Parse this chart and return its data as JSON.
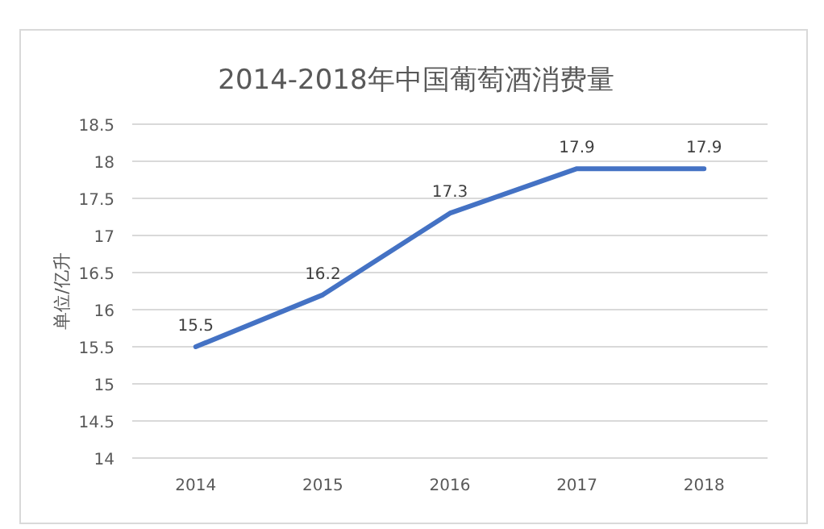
{
  "chart_data": {
    "type": "line",
    "title": "2014-2018年中国葡萄酒消费量",
    "ylabel": "单位/亿升",
    "categories": [
      "2014",
      "2015",
      "2016",
      "2017",
      "2018"
    ],
    "series": [
      {
        "color": "#4472c4",
        "values": [
          15.5,
          16.2,
          17.3,
          17.9,
          17.9
        ]
      }
    ],
    "ylim": [
      14,
      18.5
    ],
    "yticks": [
      14,
      14.5,
      15,
      15.5,
      16,
      16.5,
      17,
      17.5,
      18,
      18.5
    ],
    "grid": "y",
    "data_labels": true,
    "marker": "none",
    "line_style": "solid"
  }
}
